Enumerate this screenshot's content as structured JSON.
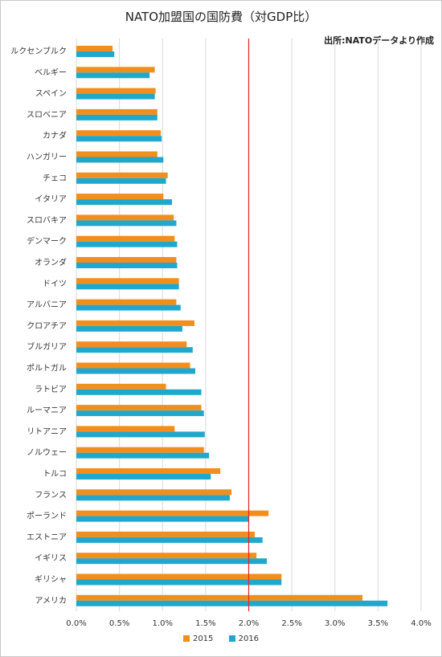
{
  "chart_data": {
    "type": "bar",
    "orientation": "horizontal",
    "title": "NATO加盟国の国防費（対GDP比）",
    "source": "出所:NATOデータより作成",
    "categories": [
      "ルクセンブルク",
      "ベルギー",
      "スペイン",
      "スロベニア",
      "カナダ",
      "ハンガリー",
      "チェコ",
      "イタリア",
      "スロバキア",
      "デンマーク",
      "オランダ",
      "ドイツ",
      "アルバニア",
      "クロアチア",
      "ブルガリア",
      "ポルトガル",
      "ラトビア",
      "ルーマニア",
      "リトアニア",
      "ノルウェー",
      "トルコ",
      "フランス",
      "ポーランド",
      "エストニア",
      "イギリス",
      "ギリシャ",
      "アメリカ"
    ],
    "series": [
      {
        "name": "2015",
        "color": "#f28e1c",
        "values": [
          0.42,
          0.91,
          0.92,
          0.94,
          0.98,
          0.94,
          1.06,
          1.01,
          1.13,
          1.14,
          1.16,
          1.19,
          1.16,
          1.37,
          1.28,
          1.32,
          1.04,
          1.45,
          1.14,
          1.48,
          1.67,
          1.8,
          2.23,
          2.07,
          2.09,
          2.38,
          3.32
        ]
      },
      {
        "name": "2016",
        "color": "#1fa8cc",
        "values": [
          0.44,
          0.85,
          0.91,
          0.94,
          0.99,
          1.01,
          1.04,
          1.11,
          1.16,
          1.17,
          1.17,
          1.19,
          1.21,
          1.23,
          1.35,
          1.38,
          1.45,
          1.48,
          1.49,
          1.54,
          1.56,
          1.78,
          2.0,
          2.16,
          2.21,
          2.38,
          3.61
        ]
      }
    ],
    "x_ticks": [
      "0.0%",
      "0.5%",
      "1.0%",
      "1.5%",
      "2.0%",
      "2.5%",
      "3.0%",
      "3.5%",
      "4.0%"
    ],
    "xlim": [
      0,
      4.0
    ],
    "reference_line": {
      "value": 2.0,
      "color": "#e8231f"
    },
    "grid": true,
    "legend_position": "bottom"
  }
}
